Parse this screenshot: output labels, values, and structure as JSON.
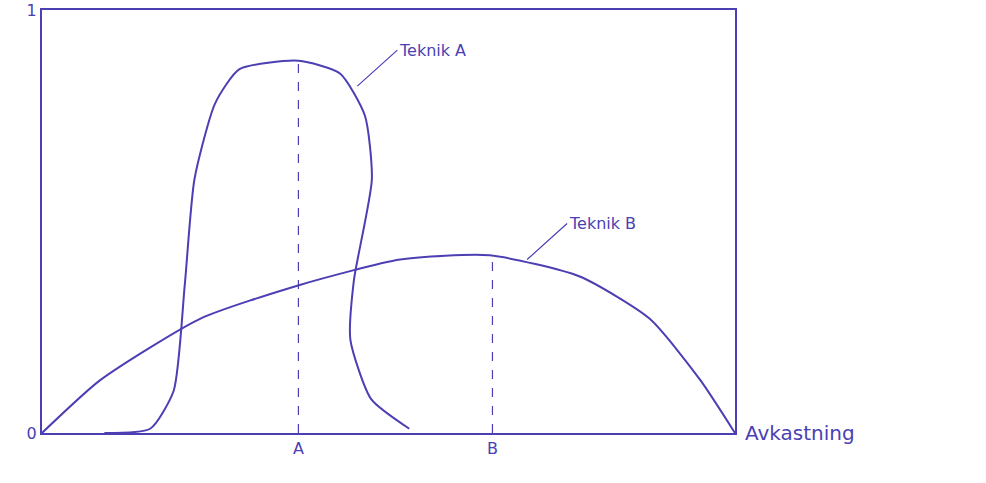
{
  "chart_data": {
    "type": "line",
    "x_label": "Avkastning",
    "xlim": [
      0,
      10
    ],
    "xticks": [
      {
        "value": 3.7,
        "label": "A"
      },
      {
        "value": 6.5,
        "label": "B"
      }
    ],
    "ylim": [
      0,
      1
    ],
    "yticks": [
      0,
      1
    ],
    "grid": false,
    "series": [
      {
        "color": "#4b3fb3",
        "x": [
          0.9,
          1.56,
          1.9,
          2.06,
          2.2,
          2.5,
          2.85,
          3.7,
          4.3,
          4.66,
          4.76,
          4.5,
          4.45,
          4.75,
          5.3
        ],
        "values": [
          0,
          0.01,
          0.1,
          0.35,
          0.6,
          0.78,
          0.86,
          0.88,
          0.85,
          0.75,
          0.6,
          0.36,
          0.22,
          0.08,
          0.01
        ]
      },
      {
        "color": "#4b3fb3",
        "x": [
          0,
          0.84,
          2.28,
          3.72,
          5.17,
          6.46,
          7.76,
          8.77,
          9.5,
          10
        ],
        "values": [
          0,
          0.125,
          0.27,
          0.35,
          0.41,
          0.42,
          0.37,
          0.27,
          0.125,
          0
        ]
      }
    ],
    "annotations": [
      {
        "text": "Teknik A",
        "x": 4.55,
        "y": 0.82
      },
      {
        "text": "Teknik B",
        "x": 7.0,
        "y": 0.41
      }
    ]
  }
}
